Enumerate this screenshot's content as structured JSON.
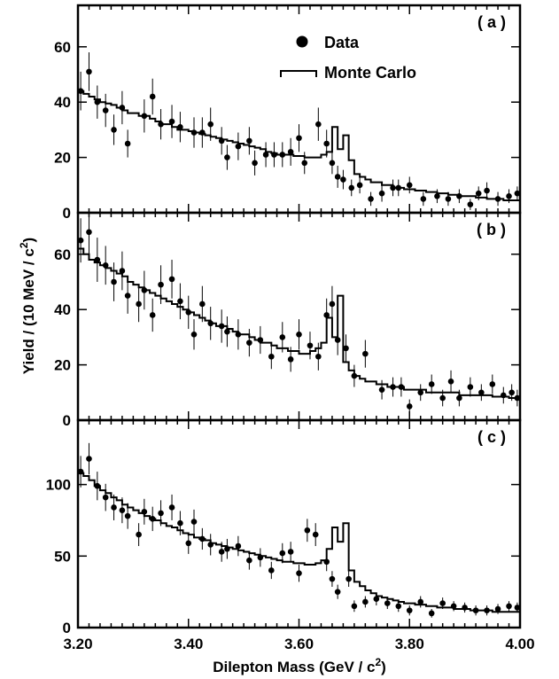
{
  "chart_data": {
    "type": "scatter",
    "xlabel_main": "Dilepton Mass  (GeV / c",
    "xlabel_sup": "2",
    "xlabel_tail": ")",
    "ylabel_main": "Yield / (10 MeV / c",
    "ylabel_sup": "2",
    "ylabel_tail": ")",
    "xlim": [
      3.2,
      4.0
    ],
    "x_ticks": [
      {
        "v": 3.2,
        "label": "3.20"
      },
      {
        "v": 3.4,
        "label": "3.40"
      },
      {
        "v": 3.6,
        "label": "3.60"
      },
      {
        "v": 3.8,
        "label": "3.80"
      },
      {
        "v": 4.0,
        "label": "4.00"
      }
    ],
    "legend": {
      "data_label": "Data",
      "mc_label": "Monte Carlo",
      "placement": "top-center of panel (a)"
    },
    "panels": [
      {
        "tag": "( a )",
        "ylim": [
          0,
          75
        ],
        "y_ticks": [
          0,
          20,
          40,
          60
        ],
        "data": {
          "x": [
            3.205,
            3.22,
            3.235,
            3.25,
            3.265,
            3.28,
            3.29,
            3.32,
            3.335,
            3.35,
            3.37,
            3.385,
            3.41,
            3.425,
            3.44,
            3.46,
            3.47,
            3.49,
            3.51,
            3.52,
            3.54,
            3.555,
            3.57,
            3.585,
            3.6,
            3.61,
            3.635,
            3.65,
            3.66,
            3.67,
            3.68,
            3.695,
            3.71,
            3.73,
            3.75,
            3.77,
            3.78,
            3.8,
            3.825,
            3.85,
            3.87,
            3.89,
            3.91,
            3.925,
            3.94,
            3.96,
            3.98,
            3.995
          ],
          "y": [
            44,
            51,
            40,
            37,
            30,
            38,
            25,
            35,
            42,
            32,
            33,
            31,
            29,
            29,
            32,
            26,
            20,
            24,
            26,
            18,
            21,
            21,
            21,
            22,
            27,
            18,
            32,
            25,
            18,
            13,
            12,
            9,
            10,
            5,
            7,
            9,
            9,
            10,
            5,
            6,
            5,
            6,
            3,
            7,
            8,
            5,
            6,
            7
          ],
          "err": [
            7,
            7,
            6,
            6,
            5.5,
            6,
            5,
            6,
            6.5,
            5.5,
            6,
            5.5,
            5.5,
            5.5,
            6,
            5,
            4.5,
            5,
            5,
            4.5,
            4.5,
            4.5,
            4.5,
            5,
            5,
            4,
            6,
            5,
            4,
            4,
            3.5,
            3,
            3,
            2.5,
            3,
            3,
            3,
            3,
            2.5,
            2.5,
            2.5,
            2.5,
            2,
            2.5,
            3,
            2.5,
            2.5,
            2.5
          ]
        },
        "mc": {
          "edges": [
            3.2,
            3.21,
            3.22,
            3.23,
            3.24,
            3.25,
            3.26,
            3.27,
            3.28,
            3.29,
            3.3,
            3.31,
            3.32,
            3.33,
            3.34,
            3.35,
            3.36,
            3.37,
            3.38,
            3.39,
            3.4,
            3.41,
            3.42,
            3.43,
            3.44,
            3.45,
            3.46,
            3.47,
            3.48,
            3.49,
            3.5,
            3.51,
            3.52,
            3.53,
            3.54,
            3.55,
            3.56,
            3.57,
            3.58,
            3.59,
            3.6,
            3.61,
            3.62,
            3.63,
            3.64,
            3.65,
            3.66,
            3.67,
            3.68,
            3.69,
            3.7,
            3.71,
            3.72,
            3.73,
            3.74,
            3.75,
            3.76,
            3.77,
            3.78,
            3.79,
            3.8,
            3.81,
            3.82,
            3.83,
            3.84,
            3.85,
            3.86,
            3.87,
            3.88,
            3.89,
            3.9,
            3.91,
            3.92,
            3.93,
            3.94,
            3.95,
            3.96,
            3.97,
            3.98,
            3.99,
            4.0
          ],
          "values": [
            44,
            43,
            42,
            41,
            40,
            39.5,
            39,
            38,
            37,
            36,
            36,
            35,
            35,
            34,
            33,
            32,
            32,
            31,
            30,
            30,
            29.5,
            29,
            28.5,
            28,
            27.5,
            27,
            26.5,
            26,
            25.5,
            25,
            24.5,
            24,
            23.5,
            23,
            22,
            21.5,
            21,
            21,
            21,
            20.5,
            20.5,
            20,
            20,
            20,
            21,
            22,
            31,
            23,
            28,
            19,
            14,
            13,
            12,
            11,
            11,
            10,
            10,
            9,
            9,
            8.5,
            8.5,
            8,
            8,
            7.5,
            7.5,
            7,
            7,
            6.5,
            6.5,
            6,
            6,
            6,
            5.5,
            5.5,
            5,
            5,
            5,
            4.5,
            4.5,
            4.5
          ]
        }
      },
      {
        "tag": "( b )",
        "ylim": [
          0,
          75
        ],
        "y_ticks": [
          0,
          20,
          40,
          60
        ],
        "data": {
          "x": [
            3.205,
            3.22,
            3.235,
            3.25,
            3.265,
            3.28,
            3.29,
            3.31,
            3.32,
            3.335,
            3.35,
            3.37,
            3.385,
            3.4,
            3.41,
            3.425,
            3.44,
            3.46,
            3.47,
            3.49,
            3.51,
            3.53,
            3.55,
            3.57,
            3.585,
            3.6,
            3.62,
            3.635,
            3.65,
            3.66,
            3.67,
            3.685,
            3.7,
            3.72,
            3.75,
            3.77,
            3.785,
            3.8,
            3.82,
            3.84,
            3.86,
            3.875,
            3.89,
            3.91,
            3.93,
            3.95,
            3.97,
            3.985,
            3.995
          ],
          "y": [
            65,
            68,
            58,
            56,
            50,
            54,
            45,
            42,
            47,
            38,
            49,
            51,
            43,
            39,
            31,
            42,
            35,
            34,
            32,
            31,
            28,
            29,
            23,
            30,
            22,
            31,
            27,
            23,
            38,
            42,
            29,
            26,
            16,
            24,
            11,
            12,
            12,
            5,
            10,
            13,
            8,
            14,
            8,
            12,
            10,
            13,
            9,
            10,
            8
          ],
          "err": [
            8,
            8,
            8,
            7,
            7,
            7,
            6.5,
            6.5,
            7,
            6,
            7,
            7,
            6.5,
            6,
            5.5,
            6.5,
            6,
            6,
            5.5,
            5.5,
            5,
            5,
            4.5,
            5.5,
            4.5,
            5.5,
            5,
            5,
            6,
            6.5,
            5.5,
            5,
            4,
            5,
            3.5,
            3.5,
            3.5,
            2.5,
            3,
            3.5,
            3,
            4,
            3,
            3.5,
            3,
            3.5,
            3,
            3,
            3
          ]
        },
        "mc": {
          "edges": [
            3.2,
            3.21,
            3.22,
            3.23,
            3.24,
            3.25,
            3.26,
            3.27,
            3.28,
            3.29,
            3.3,
            3.31,
            3.32,
            3.33,
            3.34,
            3.35,
            3.36,
            3.37,
            3.38,
            3.39,
            3.4,
            3.41,
            3.42,
            3.43,
            3.44,
            3.45,
            3.46,
            3.47,
            3.48,
            3.49,
            3.5,
            3.51,
            3.52,
            3.53,
            3.54,
            3.55,
            3.56,
            3.57,
            3.58,
            3.59,
            3.6,
            3.61,
            3.62,
            3.63,
            3.64,
            3.65,
            3.66,
            3.67,
            3.68,
            3.69,
            3.7,
            3.71,
            3.72,
            3.73,
            3.74,
            3.75,
            3.76,
            3.77,
            3.78,
            3.79,
            3.8,
            3.81,
            3.82,
            3.83,
            3.84,
            3.85,
            3.86,
            3.87,
            3.88,
            3.89,
            3.9,
            3.91,
            3.92,
            3.93,
            3.94,
            3.95,
            3.96,
            3.97,
            3.98,
            3.99,
            4.0
          ],
          "values": [
            62,
            60,
            58,
            57,
            56,
            55,
            54,
            53,
            52,
            50,
            49,
            48,
            47,
            46,
            45,
            44,
            43,
            42,
            41,
            40,
            39,
            38,
            37,
            36,
            35,
            34,
            34,
            33,
            32,
            31,
            31,
            30,
            29,
            28,
            28,
            27,
            26,
            26,
            25,
            25,
            24,
            24,
            25,
            26,
            28,
            37,
            30,
            45,
            21,
            18,
            16,
            15,
            14,
            14,
            13,
            13,
            12,
            12,
            12,
            11,
            11,
            11,
            11,
            10,
            10,
            10,
            10,
            10,
            10,
            9,
            9,
            9,
            9,
            9,
            9,
            8.5,
            8.5,
            8.5,
            8,
            8
          ]
        }
      },
      {
        "tag": "( c )",
        "ylim": [
          0,
          145
        ],
        "y_ticks": [
          0,
          50,
          100
        ],
        "data": {
          "x": [
            3.205,
            3.22,
            3.235,
            3.25,
            3.265,
            3.28,
            3.29,
            3.31,
            3.32,
            3.335,
            3.35,
            3.37,
            3.385,
            3.4,
            3.41,
            3.425,
            3.44,
            3.46,
            3.47,
            3.49,
            3.51,
            3.53,
            3.55,
            3.57,
            3.585,
            3.6,
            3.615,
            3.63,
            3.65,
            3.66,
            3.67,
            3.69,
            3.7,
            3.72,
            3.74,
            3.76,
            3.78,
            3.8,
            3.82,
            3.84,
            3.86,
            3.88,
            3.9,
            3.92,
            3.94,
            3.96,
            3.98,
            3.995
          ],
          "y": [
            109,
            118,
            99,
            91,
            84,
            82,
            78,
            65,
            81,
            76,
            80,
            84,
            73,
            59,
            74,
            62,
            58,
            53,
            55,
            57,
            47,
            49,
            40,
            52,
            53,
            38,
            68,
            65,
            46,
            34,
            25,
            34,
            15,
            18,
            20,
            17,
            15,
            12,
            18,
            10,
            17,
            15,
            14,
            12,
            12,
            13,
            15,
            14
          ],
          "err": [
            11,
            11,
            10,
            9.5,
            9,
            9,
            9,
            8,
            9,
            8.5,
            9,
            9,
            8.5,
            7.5,
            8.5,
            7.5,
            7.5,
            7,
            7,
            7,
            6.5,
            6.5,
            6,
            7,
            7,
            6,
            8,
            8,
            6.5,
            5.5,
            5,
            5.5,
            4,
            4,
            4.5,
            4,
            4,
            3.5,
            4,
            3,
            4,
            3.5,
            3.5,
            3.5,
            3.5,
            3.5,
            3.5,
            3.5
          ]
        },
        "mc": {
          "edges": [
            3.2,
            3.21,
            3.22,
            3.23,
            3.24,
            3.25,
            3.26,
            3.27,
            3.28,
            3.29,
            3.3,
            3.31,
            3.32,
            3.33,
            3.34,
            3.35,
            3.36,
            3.37,
            3.38,
            3.39,
            3.4,
            3.41,
            3.42,
            3.43,
            3.44,
            3.45,
            3.46,
            3.47,
            3.48,
            3.49,
            3.5,
            3.51,
            3.52,
            3.53,
            3.54,
            3.55,
            3.56,
            3.57,
            3.58,
            3.59,
            3.6,
            3.61,
            3.62,
            3.63,
            3.64,
            3.65,
            3.66,
            3.67,
            3.68,
            3.69,
            3.7,
            3.71,
            3.72,
            3.73,
            3.74,
            3.75,
            3.76,
            3.77,
            3.78,
            3.79,
            3.8,
            3.81,
            3.82,
            3.83,
            3.84,
            3.85,
            3.86,
            3.87,
            3.88,
            3.89,
            3.9,
            3.91,
            3.92,
            3.93,
            3.94,
            3.95,
            3.96,
            3.97,
            3.98,
            3.99,
            4.0
          ],
          "values": [
            108,
            106,
            103,
            99,
            96,
            94,
            91,
            89,
            86,
            84,
            82,
            80,
            78,
            76,
            75,
            73,
            71,
            70,
            68,
            66,
            65,
            63,
            62,
            61,
            59,
            58,
            57,
            56,
            55,
            54,
            53,
            52,
            51,
            50,
            49,
            48,
            47,
            46,
            46,
            45,
            45,
            44,
            44,
            45,
            47,
            55,
            70,
            60,
            73,
            40,
            32,
            29,
            26,
            24,
            22,
            21,
            20,
            19,
            18,
            17,
            17,
            16,
            16,
            15,
            15,
            14,
            14,
            14,
            13,
            13,
            13,
            12,
            12,
            12,
            12,
            11,
            11,
            11,
            11,
            11
          ]
        }
      }
    ]
  }
}
